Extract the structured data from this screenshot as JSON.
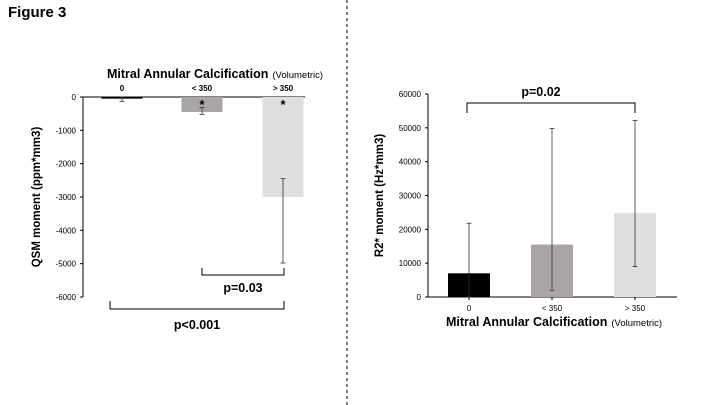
{
  "figure_label": "Figure 3",
  "chart_data": [
    {
      "type": "bar",
      "title_main": "Mitral Annular Calcification",
      "title_sub": "(Volumetric)",
      "ylabel": "QSM moment (ppm*mm3)",
      "xlabel": "",
      "ylim": [
        -6000,
        0
      ],
      "yticks": [
        0,
        -1000,
        -2000,
        -3000,
        -4000,
        -5000,
        -6000
      ],
      "categories": [
        "0",
        "< 350",
        "> 350"
      ],
      "values": [
        -50,
        -450,
        -3000
      ],
      "error": [
        {
          "low": -130,
          "high": 0
        },
        {
          "low": -520,
          "high": -320
        },
        {
          "low": -4980,
          "high": -2450
        }
      ],
      "colors": [
        "#000000",
        "#a9a5a4",
        "#e0dfdf"
      ],
      "significance_marks": [
        {
          "category": 1,
          "label": "*"
        },
        {
          "category": 2,
          "label": "*"
        }
      ],
      "brackets": [
        {
          "from": 1,
          "to": 2,
          "label": "p=0.03"
        },
        {
          "from": 0,
          "to": 2,
          "label": "p<0.001"
        }
      ]
    },
    {
      "type": "bar",
      "title_main": "Mitral Annular Calcification",
      "title_sub": "(Volumetric)",
      "ylabel": "R2* moment (Hz*mm3)",
      "xlabel": "",
      "ylim": [
        0,
        60000
      ],
      "yticks": [
        0,
        10000,
        20000,
        30000,
        40000,
        50000,
        60000
      ],
      "categories": [
        "0",
        "< 350",
        "> 350"
      ],
      "values": [
        7000,
        15500,
        24800
      ],
      "error": [
        {
          "low": 0,
          "high": 21800
        },
        {
          "low": 2000,
          "high": 49800
        },
        {
          "low": 9000,
          "high": 52200
        }
      ],
      "colors": [
        "#000000",
        "#a9a5a4",
        "#e0dfdf"
      ],
      "brackets": [
        {
          "from": 0,
          "to": 2,
          "label": "p=0.02"
        }
      ]
    }
  ]
}
